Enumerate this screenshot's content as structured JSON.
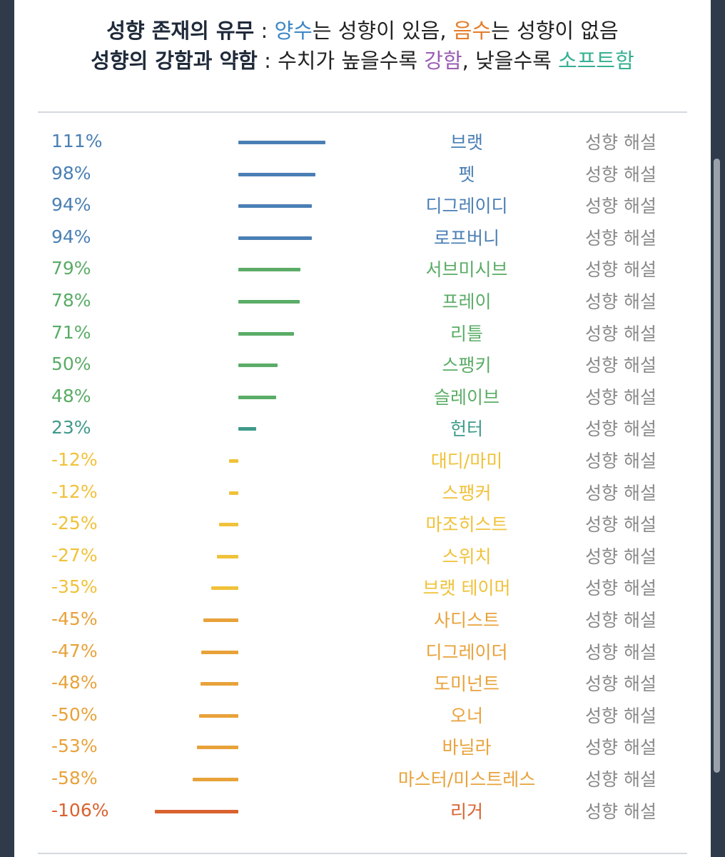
{
  "header": {
    "line1": {
      "bold": "성향 존재의 유무",
      "sep": " : ",
      "pos_word": "양수",
      "pos_rest": "는 성향이 있음, ",
      "neg_word": "음수",
      "neg_rest": "는 성향이 없음"
    },
    "line2": {
      "bold": "성향의 강함과 약함",
      "sep": " : ",
      "part1": "수치가 높을수록 ",
      "strong_word": "강함",
      "part2": ", 낮을수록 ",
      "soft_word": "소프트함"
    }
  },
  "link_label": "성향 해설",
  "colors": {
    "blue": "#4a7fb5",
    "green": "#5aac66",
    "teal": "#3f9a8a",
    "yellow": "#f0c23a",
    "amber": "#e8a23a",
    "red": "#d9622f"
  },
  "chart_data": {
    "type": "bar",
    "categories": [
      "브랫",
      "펫",
      "디그레이디",
      "로프버니",
      "서브미시브",
      "프레이",
      "리틀",
      "스팽키",
      "슬레이브",
      "헌터",
      "대디/마미",
      "스팽커",
      "마조히스트",
      "스위치",
      "브랫 테이머",
      "사디스트",
      "디그레이더",
      "도미넌트",
      "오너",
      "바닐라",
      "마스터/미스트레스",
      "리거"
    ],
    "values": [
      111,
      98,
      94,
      94,
      79,
      78,
      71,
      50,
      48,
      23,
      -12,
      -12,
      -25,
      -27,
      -35,
      -45,
      -47,
      -48,
      -50,
      -53,
      -58,
      -106
    ],
    "labels": [
      "111%",
      "98%",
      "94%",
      "94%",
      "79%",
      "78%",
      "71%",
      "50%",
      "48%",
      "23%",
      "-12%",
      "-12%",
      "-25%",
      "-27%",
      "-35%",
      "-45%",
      "-47%",
      "-48%",
      "-50%",
      "-53%",
      "-58%",
      "-106%"
    ],
    "color_groups": [
      "blue",
      "blue",
      "blue",
      "blue",
      "green",
      "green",
      "green",
      "green",
      "green",
      "teal",
      "yellow",
      "yellow",
      "yellow",
      "yellow",
      "yellow",
      "amber",
      "amber",
      "amber",
      "amber",
      "amber",
      "amber",
      "red"
    ],
    "unit": "%"
  }
}
